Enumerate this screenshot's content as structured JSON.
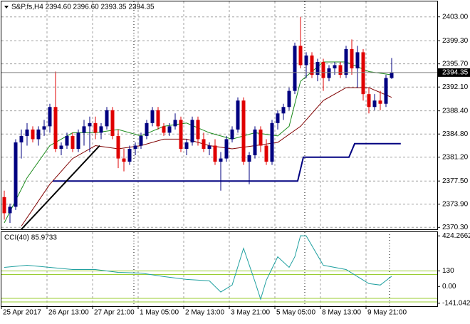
{
  "chart_data": {
    "type": "candlestick",
    "title": "S&P,fs,H4  2394.60 2396.60 2393.35 2394.35",
    "categories": [
      "25 Apr 2017",
      null,
      null,
      null,
      null,
      null,
      null,
      null,
      "26 Apr 13:00",
      null,
      null,
      null,
      null,
      null,
      null,
      null,
      "27 Apr 21:00",
      null,
      null,
      null,
      null,
      null,
      null,
      null,
      "1 May 05:00",
      null,
      null,
      null,
      null,
      null,
      null,
      null,
      "2 May 13:00",
      null,
      null,
      null,
      null,
      null,
      null,
      null,
      "3 May 21:00",
      null,
      null,
      null,
      null,
      null,
      null,
      null,
      "5 May 05:00",
      null,
      null,
      null,
      null,
      null,
      null,
      null,
      "8 May 13:00",
      null,
      null,
      null,
      null,
      null,
      null,
      null,
      "9 May 21:00",
      null,
      null,
      null,
      null
    ],
    "open": [
      2375,
      2372.5,
      2373.5,
      2383.5,
      2384.5,
      2385.5,
      2384,
      2385.5,
      2386,
      2389,
      2382.5,
      2383,
      2384.5,
      2382.5,
      2385,
      2386,
      2386.5,
      2385,
      2386,
      2388.5,
      2384.5,
      2381,
      2380.5,
      2382.5,
      2383,
      2384.5,
      2386.5,
      2388.5,
      2386,
      2385,
      2386,
      2387,
      2382.5,
      2383.5,
      2387,
      2384,
      2382.5,
      2383,
      2380.5,
      2381,
      2384,
      2385.5,
      2390,
      2380.5,
      2381.5,
      2385.5,
      2383,
      2380.5,
      2386.5,
      2388,
      2389,
      2391.5,
      2398.5,
      2395.5,
      2397,
      2394,
      2396,
      2393.5,
      2395,
      2395.5,
      2394,
      2398,
      2395,
      2397.5,
      2391,
      2389,
      2390,
      2389.5,
      2393.5
    ],
    "high": [
      2376,
      2374,
      2384,
      2385.5,
      2386.5,
      2386,
      2386,
      2387,
      2389.5,
      2394.5,
      2383.5,
      2385,
      2385,
      2385.5,
      2387,
      2387.5,
      2387.5,
      2386.5,
      2389,
      2389,
      2385.5,
      2382.5,
      2383,
      2383.5,
      2385,
      2387,
      2389,
      2389,
      2386.5,
      2386.5,
      2388,
      2387.5,
      2384,
      2387.5,
      2387.5,
      2385,
      2383.5,
      2384,
      2382,
      2384.5,
      2386,
      2390.5,
      2390.5,
      2382,
      2386,
      2386,
      2384,
      2387,
      2388.5,
      2389.5,
      2392,
      2399,
      2403,
      2397.5,
      2397.5,
      2396.5,
      2396.5,
      2395.5,
      2396,
      2396,
      2398.5,
      2399.5,
      2398.5,
      2398,
      2392,
      2391,
      2391.5,
      2394,
      2396.6
    ],
    "low": [
      2371.5,
      2371,
      2373,
      2381,
      2383,
      2383.5,
      2383,
      2384.5,
      2385,
      2382,
      2381.5,
      2382.5,
      2382,
      2382,
      2383,
      2382,
      2384,
      2384,
      2385.5,
      2384,
      2379.5,
      2379,
      2380,
      2381.5,
      2382.5,
      2384,
      2386,
      2385.5,
      2384.5,
      2384.5,
      2385.5,
      2382,
      2381.5,
      2383,
      2383,
      2382,
      2381.5,
      2380,
      2376,
      2380.5,
      2383.5,
      2385,
      2380,
      2377,
      2381,
      2382,
      2380,
      2380,
      2385.5,
      2387,
      2388.5,
      2391,
      2395,
      2393.5,
      2393.5,
      2393,
      2391.5,
      2393,
      2394,
      2393.5,
      2393.5,
      2394,
      2392,
      2390,
      2388,
      2388.5,
      2388.5,
      2389,
      2393.35
    ],
    "close": [
      2372.5,
      2373.5,
      2383.5,
      2384.5,
      2385.5,
      2384,
      2385.5,
      2386,
      2389,
      2382.5,
      2383,
      2384.5,
      2382.5,
      2385,
      2386,
      2386.5,
      2385,
      2386,
      2388.5,
      2384.5,
      2381,
      2380.5,
      2382.5,
      2383,
      2384.5,
      2386.5,
      2388.5,
      2386,
      2385,
      2386,
      2387,
      2382.5,
      2383.5,
      2387,
      2384,
      2382.5,
      2383,
      2380.5,
      2381,
      2384,
      2385.5,
      2390,
      2380.5,
      2381.5,
      2385.5,
      2383,
      2380.5,
      2386.5,
      2388,
      2389,
      2391.5,
      2398.5,
      2395.5,
      2397,
      2394,
      2396,
      2393.5,
      2395,
      2395.5,
      2394,
      2398,
      2395,
      2397.5,
      2391,
      2389,
      2390,
      2389.5,
      2393.5,
      2394.35
    ],
    "up_color": "#000080",
    "down_color": "#e00000",
    "ylim": [
      2370,
      2405.4
    ],
    "yticks": [
      {
        "value": 2403,
        "label": "2403.00"
      },
      {
        "value": 2399.3,
        "label": "2399.30"
      },
      {
        "value": 2395.7,
        "label": "2395.70"
      },
      {
        "value": 2392.1,
        "label": "2392.10"
      },
      {
        "value": 2388.4,
        "label": "2388.40"
      },
      {
        "value": 2384.8,
        "label": "2384.80"
      },
      {
        "value": 2381.2,
        "label": "2381.20"
      },
      {
        "value": 2377.5,
        "label": "2377.50"
      },
      {
        "value": 2373.9,
        "label": "2373.90"
      },
      {
        "value": 2370.3,
        "label": "2370.30"
      }
    ],
    "current_price": 2394.35,
    "grid": true,
    "overlays": [
      {
        "color": "#1a8a1a",
        "x": [
          0,
          4,
          8,
          12,
          16,
          20,
          24,
          28,
          32,
          36,
          40,
          44,
          48,
          50,
          52,
          56,
          60,
          64,
          68
        ],
        "values": [
          2371,
          2378,
          2383,
          2385,
          2385,
          2385.5,
          2384.5,
          2386,
          2386.5,
          2385,
          2384,
          2385,
          2384.5,
          2386,
          2393,
          2396,
          2396,
          2394.5,
          2394
        ]
      },
      {
        "color": "#800000",
        "x": [
          3,
          8,
          12,
          16,
          20,
          24,
          28,
          32,
          36,
          40,
          44,
          48,
          52,
          56,
          60,
          64,
          68
        ],
        "values": [
          2370.5,
          2377,
          2381,
          2383,
          2382.5,
          2383,
          2384,
          2384,
          2383,
          2382.5,
          2383,
          2383.5,
          2386,
          2390,
          2392,
          2392,
          2390.5
        ]
      },
      {
        "color": "#000080",
        "x": [
          8.5,
          51.5,
          52.5,
          60.5,
          61.5,
          69.6
        ],
        "values": [
          2377.5,
          2377.5,
          2381.2,
          2381.2,
          2383.3,
          2383.3
        ]
      },
      {
        "color": "#000000",
        "x": [
          3,
          16.75
        ],
        "values": [
          2370,
          2383
        ]
      }
    ],
    "indicator": {
      "type": "line",
      "title": "CCI(40) 85.9733",
      "color": "#20a0a0",
      "ylim": [
        -165.6,
        455.6
      ],
      "yticks": [
        424.2662,
        130,
        {
          "value": 0,
          "label": "0.00"
        },
        -141.0421
      ],
      "levels": [
        130,
        100,
        -100,
        -130
      ],
      "level_color": "#9acd32",
      "x": [
        0,
        4,
        8,
        12,
        16,
        20,
        24,
        28,
        32,
        36,
        38,
        40,
        42,
        44,
        45,
        46,
        48,
        50,
        51,
        52,
        53,
        56,
        60,
        64,
        66,
        68
      ],
      "values": [
        160,
        178,
        160,
        142,
        142,
        118,
        112,
        83,
        59,
        47,
        -47,
        12,
        320,
        41,
        -107,
        53,
        249,
        160,
        249,
        426,
        424,
        178,
        142,
        24,
        12,
        86
      ]
    }
  }
}
